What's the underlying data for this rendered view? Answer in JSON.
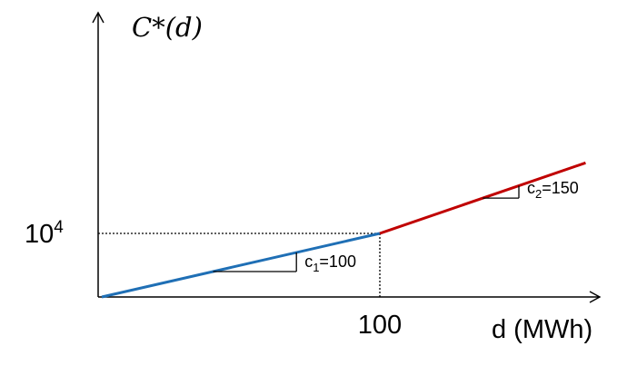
{
  "chart_data": {
    "type": "line",
    "ylabel": "C*(d)",
    "xlabel": "d (MWh)",
    "x_ticks": [
      {
        "value": 100,
        "label": "100"
      }
    ],
    "y_ticks": [
      {
        "value": 10000,
        "label_base": "10",
        "label_exp": "4"
      }
    ],
    "xlim": [
      0,
      180
    ],
    "ylim": [
      0,
      35000
    ],
    "grid": false,
    "series": [
      {
        "color": "#1f6fb5",
        "points": [
          [
            0,
            0
          ],
          [
            100,
            10000
          ]
        ]
      },
      {
        "color": "#c00000",
        "points": [
          [
            100,
            10000
          ],
          [
            174,
            21100
          ]
        ]
      }
    ],
    "slope_annotations": [
      {
        "label_main": "c",
        "label_sub": "1",
        "label_rest": "=100",
        "series_index": 0,
        "x_from": 40,
        "x_to": 70
      },
      {
        "label_main": "c",
        "label_sub": "2",
        "label_rest": "=150",
        "series_index": 1,
        "x_from": 137,
        "x_to": 150
      }
    ],
    "guides": [
      {
        "x": 100,
        "y": 10000,
        "style": "dotted"
      }
    ]
  }
}
